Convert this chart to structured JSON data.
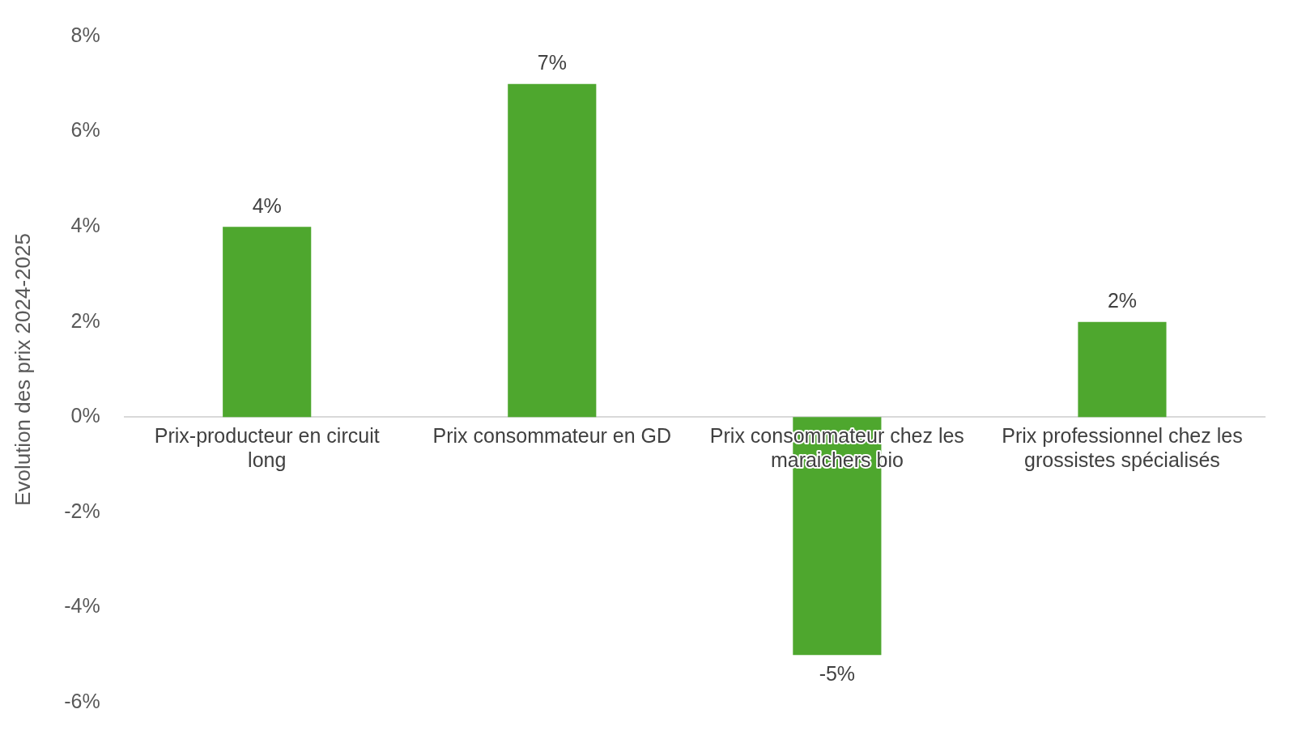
{
  "chart_data": {
    "type": "bar",
    "ylabel": "Evolution des prix 2024-2025",
    "categories": [
      "Prix-producteur en circuit long",
      "Prix consommateur en GD",
      "Prix consommateur chez les maraichers bio",
      "Prix professionnel chez les grossistes spécialisés"
    ],
    "values": [
      4,
      7,
      -5,
      2
    ],
    "color": "#4ea72e",
    "value_labels": [
      "4%",
      "7%",
      "-5%",
      "2%"
    ],
    "ylim": [
      -6,
      8
    ],
    "yticks": [
      {
        "value": -6,
        "label": "-6%"
      },
      {
        "value": -4,
        "label": "-4%"
      },
      {
        "value": -2,
        "label": "-2%"
      },
      {
        "value": 0,
        "label": "0%"
      },
      {
        "value": 2,
        "label": "2%"
      },
      {
        "value": 4,
        "label": "4%"
      },
      {
        "value": 6,
        "label": "6%"
      },
      {
        "value": 8,
        "label": "8%"
      }
    ],
    "grid": false,
    "legend": false
  }
}
